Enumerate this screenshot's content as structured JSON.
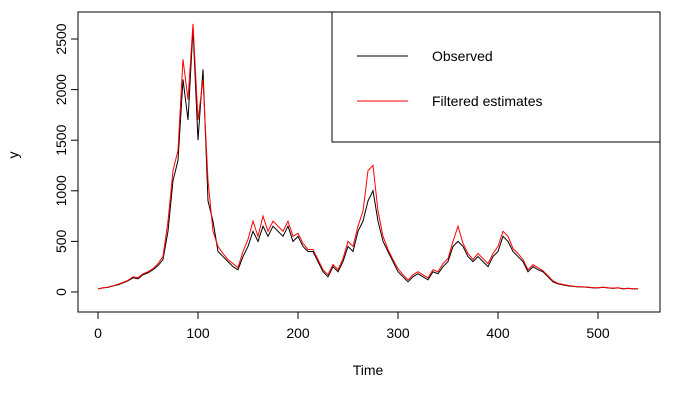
{
  "chart_data": {
    "type": "line",
    "x": [
      0,
      5,
      10,
      15,
      20,
      25,
      30,
      35,
      40,
      45,
      50,
      55,
      60,
      65,
      70,
      75,
      80,
      85,
      90,
      95,
      100,
      105,
      110,
      115,
      120,
      125,
      130,
      135,
      140,
      145,
      150,
      155,
      160,
      165,
      170,
      175,
      180,
      185,
      190,
      195,
      200,
      205,
      210,
      215,
      220,
      225,
      230,
      235,
      240,
      245,
      250,
      255,
      260,
      265,
      270,
      275,
      280,
      285,
      290,
      295,
      300,
      305,
      310,
      315,
      320,
      325,
      330,
      335,
      340,
      345,
      350,
      355,
      360,
      365,
      370,
      375,
      380,
      385,
      390,
      395,
      400,
      405,
      410,
      415,
      420,
      425,
      430,
      435,
      440,
      445,
      450,
      455,
      460,
      465,
      470,
      475,
      480,
      485,
      490,
      495,
      500,
      505,
      510,
      515,
      520,
      525,
      530,
      535,
      540
    ],
    "series": [
      {
        "name": "Observed",
        "color": "#000000",
        "values": [
          30,
          40,
          45,
          60,
          70,
          90,
          110,
          140,
          130,
          170,
          190,
          220,
          260,
          320,
          600,
          1100,
          1300,
          2100,
          1700,
          2600,
          1500,
          2200,
          900,
          700,
          400,
          350,
          300,
          250,
          220,
          350,
          450,
          600,
          500,
          650,
          550,
          650,
          600,
          550,
          650,
          500,
          550,
          450,
          400,
          400,
          300,
          200,
          150,
          250,
          200,
          300,
          450,
          400,
          600,
          700,
          900,
          1000,
          700,
          500,
          400,
          300,
          200,
          150,
          100,
          150,
          180,
          150,
          120,
          200,
          180,
          250,
          300,
          450,
          500,
          450,
          350,
          300,
          350,
          300,
          250,
          350,
          400,
          550,
          500,
          400,
          350,
          300,
          200,
          250,
          220,
          200,
          150,
          100,
          80,
          70,
          60,
          55,
          50,
          50,
          45,
          40,
          40,
          45,
          40,
          35,
          40,
          30,
          35,
          30,
          30
        ]
      },
      {
        "name": "Filtered estimates",
        "color": "#ff0000",
        "values": [
          30,
          42,
          48,
          62,
          75,
          95,
          115,
          150,
          140,
          180,
          200,
          230,
          280,
          350,
          700,
          1200,
          1400,
          2300,
          1900,
          2650,
          1700,
          2100,
          1100,
          600,
          450,
          380,
          320,
          280,
          240,
          400,
          520,
          700,
          550,
          750,
          600,
          700,
          650,
          600,
          700,
          550,
          580,
          480,
          420,
          420,
          320,
          220,
          170,
          270,
          220,
          330,
          500,
          450,
          650,
          800,
          1200,
          1250,
          800,
          550,
          420,
          320,
          230,
          170,
          120,
          170,
          200,
          170,
          140,
          220,
          200,
          280,
          330,
          500,
          650,
          480,
          380,
          320,
          380,
          330,
          280,
          380,
          450,
          600,
          550,
          430,
          380,
          320,
          220,
          270,
          240,
          210,
          160,
          110,
          85,
          75,
          65,
          58,
          52,
          52,
          48,
          43,
          42,
          48,
          42,
          38,
          42,
          33,
          37,
          32,
          32
        ]
      }
    ],
    "x_label": "Time",
    "y_label": "y",
    "xlim": [
      -20,
      562
    ],
    "ylim": [
      -198,
      2767
    ],
    "xticks": [
      0,
      100,
      200,
      300,
      400,
      500
    ],
    "yticks": [
      0,
      500,
      1000,
      1500,
      2000,
      2500
    ],
    "legend": "top-right"
  }
}
